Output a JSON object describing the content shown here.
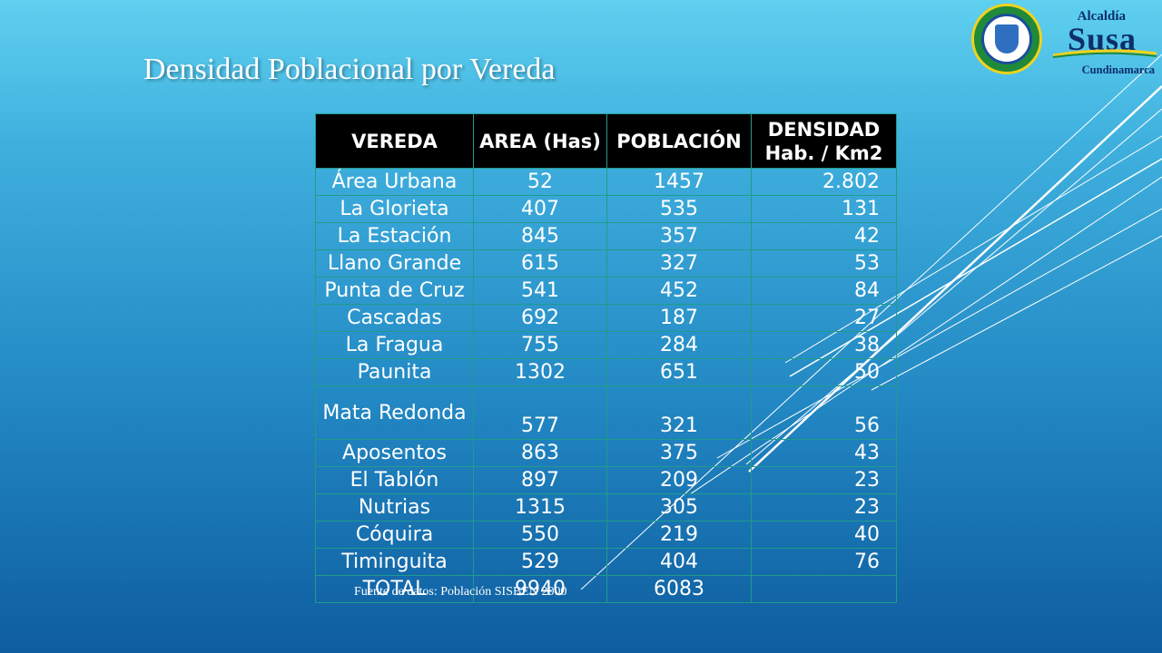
{
  "slide": {
    "title": "Densidad Poblacional por Vereda",
    "source_note": "Fuente de datos: Población SISBEN 2000"
  },
  "logo": {
    "small": "Alcaldía",
    "big": "Susa",
    "region": "Cundinamarca"
  },
  "table": {
    "headers": [
      "VEREDA",
      "AREA (Has)",
      "POBLACIÓN",
      "DENSIDAD Hab. / Km2"
    ],
    "rows": [
      {
        "vereda": "Área Urbana",
        "area": "52",
        "poblacion": "1457",
        "densidad": "2.802"
      },
      {
        "vereda": "La Glorieta",
        "area": "407",
        "poblacion": "535",
        "densidad": "131"
      },
      {
        "vereda": "La Estación",
        "area": "845",
        "poblacion": "357",
        "densidad": "42"
      },
      {
        "vereda": "Llano Grande",
        "area": "615",
        "poblacion": "327",
        "densidad": "53"
      },
      {
        "vereda": "Punta de Cruz",
        "area": "541",
        "poblacion": "452",
        "densidad": "84"
      },
      {
        "vereda": "Cascadas",
        "area": "692",
        "poblacion": "187",
        "densidad": "27"
      },
      {
        "vereda": "La Fragua",
        "area": "755",
        "poblacion": "284",
        "densidad": "38"
      },
      {
        "vereda": "Paunita",
        "area": "1302",
        "poblacion": "651",
        "densidad": "50"
      },
      {
        "vereda": "Mata Redonda",
        "area": "577",
        "poblacion": "321",
        "densidad": "56"
      },
      {
        "vereda": "Aposentos",
        "area": "863",
        "poblacion": "375",
        "densidad": "43"
      },
      {
        "vereda": "El Tablón",
        "area": "897",
        "poblacion": "209",
        "densidad": "23"
      },
      {
        "vereda": "Nutrias",
        "area": "1315",
        "poblacion": "305",
        "densidad": "23"
      },
      {
        "vereda": "Cóquira",
        "area": "550",
        "poblacion": "219",
        "densidad": "40"
      },
      {
        "vereda": "Timinguita",
        "area": "529",
        "poblacion": "404",
        "densidad": "76"
      }
    ],
    "total": {
      "label": "TOTAL",
      "area": "9940",
      "poblacion": "6083",
      "densidad": ""
    }
  },
  "colors": {
    "header_bg": "#000000",
    "grid_line": "#1f9c8a",
    "text": "#ffffff"
  }
}
